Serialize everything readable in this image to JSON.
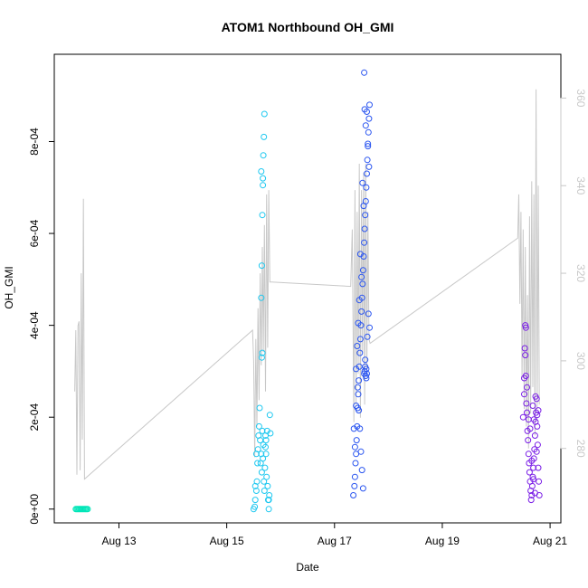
{
  "chart_data": {
    "type": "scatter",
    "title": "ATOM1 Northbound OH_GMI",
    "xlabel": "Date",
    "ylabel": "OH_GMI",
    "y2label": "",
    "x_ticks": [
      "Aug 13",
      "Aug 15",
      "Aug 17",
      "Aug 19",
      "Aug 21"
    ],
    "x_tick_days": [
      13,
      15,
      17,
      19,
      21
    ],
    "xlim_days": [
      11.8,
      21.2
    ],
    "y_ticks": [
      "0e+00",
      "2e-04",
      "4e-04",
      "6e-04",
      "8e-04"
    ],
    "y_tick_values": [
      0,
      0.0002,
      0.0004,
      0.0006,
      0.0008
    ],
    "ylim": [
      -3e-05,
      0.00099
    ],
    "y2_ticks": [
      "280",
      "300",
      "320",
      "340",
      "360"
    ],
    "y2_tick_values": [
      280,
      300,
      320,
      340,
      360
    ],
    "y2lim": [
      263,
      370
    ],
    "colors": {
      "line": "#c8c8c8",
      "frame": "#000000",
      "right_axis": "#c8c8c8"
    },
    "series": [
      {
        "color": "#00e6b8",
        "points_day_value": [
          [
            12.2,
            0.0
          ],
          [
            12.22,
            0.0
          ],
          [
            12.24,
            0.0
          ],
          [
            12.26,
            0.0
          ],
          [
            12.28,
            0.0
          ],
          [
            12.3,
            0.0
          ],
          [
            12.32,
            0.0
          ],
          [
            12.34,
            0.0
          ],
          [
            12.36,
            0.0
          ],
          [
            12.38,
            0.0
          ],
          [
            12.4,
            0.0
          ],
          [
            12.42,
            0.0
          ]
        ]
      },
      {
        "color": "#1ec8f0",
        "points_day_value": [
          [
            15.5,
            0.0
          ],
          [
            15.52,
            5e-06
          ],
          [
            15.53,
            2e-05
          ],
          [
            15.55,
            4e-05
          ],
          [
            15.56,
            6e-05
          ],
          [
            15.57,
            0.0001
          ],
          [
            15.58,
            0.00013
          ],
          [
            15.59,
            0.00016
          ],
          [
            15.6,
            0.00018
          ],
          [
            15.61,
            0.00022
          ],
          [
            15.62,
            0.00015
          ],
          [
            15.63,
            0.0001
          ],
          [
            15.64,
            0.00012
          ],
          [
            15.65,
            8e-05
          ],
          [
            15.66,
            0.00017
          ],
          [
            15.67,
            0.00011
          ],
          [
            15.68,
            0.00014
          ],
          [
            15.69,
            6e-05
          ],
          [
            15.7,
            4e-05
          ],
          [
            15.71,
            9e-05
          ],
          [
            15.72,
            0.00016
          ],
          [
            15.73,
            0.00012
          ],
          [
            15.74,
            7e-05
          ],
          [
            15.75,
            0.00017
          ],
          [
            15.76,
            5e-05
          ],
          [
            15.77,
            2e-05
          ],
          [
            15.78,
            0.0
          ],
          [
            15.79,
            3e-05
          ],
          [
            15.8,
            0.000205
          ],
          [
            15.81,
            0.000165
          ],
          [
            15.64,
            0.00046
          ],
          [
            15.65,
            0.00053
          ],
          [
            15.66,
            0.00064
          ],
          [
            15.67,
            0.00072
          ],
          [
            15.68,
            0.00077
          ],
          [
            15.69,
            0.00081
          ],
          [
            15.7,
            0.00086
          ],
          [
            15.65,
            0.00033
          ],
          [
            15.66,
            0.00034
          ],
          [
            15.64,
            0.000735
          ],
          [
            15.67,
            0.000705
          ],
          [
            15.72,
            0.000135
          ],
          [
            15.73,
            0.00015
          ],
          [
            15.78,
            2e-05
          ],
          [
            15.53,
            5e-05
          ],
          [
            15.55,
            0.00012
          ]
        ]
      },
      {
        "color": "#2a55f0",
        "points_day_value": [
          [
            17.35,
            3e-05
          ],
          [
            17.37,
            5e-05
          ],
          [
            17.38,
            7e-05
          ],
          [
            17.39,
            0.0001
          ],
          [
            17.4,
            0.00012
          ],
          [
            17.41,
            0.00015
          ],
          [
            17.42,
            0.00018
          ],
          [
            17.43,
            0.00022
          ],
          [
            17.44,
            0.00025
          ],
          [
            17.45,
            0.00028
          ],
          [
            17.46,
            0.00031
          ],
          [
            17.47,
            0.00034
          ],
          [
            17.48,
            0.00037
          ],
          [
            17.49,
            0.0004
          ],
          [
            17.5,
            0.00043
          ],
          [
            17.51,
            0.00046
          ],
          [
            17.52,
            0.00049
          ],
          [
            17.53,
            0.00052
          ],
          [
            17.54,
            0.00055
          ],
          [
            17.55,
            0.00058
          ],
          [
            17.56,
            0.00061
          ],
          [
            17.57,
            0.00064
          ],
          [
            17.58,
            0.00067
          ],
          [
            17.59,
            0.0007
          ],
          [
            17.6,
            0.00073
          ],
          [
            17.61,
            0.00076
          ],
          [
            17.62,
            0.00079
          ],
          [
            17.63,
            0.00082
          ],
          [
            17.64,
            0.00085
          ],
          [
            17.65,
            0.00088
          ],
          [
            17.55,
            0.00095
          ],
          [
            17.56,
            0.00087
          ],
          [
            17.58,
            0.000835
          ],
          [
            17.6,
            0.000865
          ],
          [
            17.62,
            0.000795
          ],
          [
            17.64,
            0.000745
          ],
          [
            17.52,
            0.00071
          ],
          [
            17.54,
            0.00066
          ],
          [
            17.48,
            0.000555
          ],
          [
            17.5,
            0.000505
          ],
          [
            17.46,
            0.000455
          ],
          [
            17.44,
            0.000405
          ],
          [
            17.42,
            0.000355
          ],
          [
            17.4,
            0.000305
          ],
          [
            17.43,
            0.000265
          ],
          [
            17.45,
            0.000215
          ],
          [
            17.47,
            0.000175
          ],
          [
            17.49,
            0.000125
          ],
          [
            17.51,
            8.5e-05
          ],
          [
            17.53,
            4.5e-05
          ],
          [
            17.55,
            0.000295
          ],
          [
            17.57,
            0.000325
          ],
          [
            17.59,
            0.000285
          ],
          [
            17.61,
            0.000375
          ],
          [
            17.63,
            0.000425
          ],
          [
            17.65,
            0.000395
          ],
          [
            17.36,
            0.000175
          ],
          [
            17.38,
            0.000135
          ],
          [
            17.4,
            0.000225
          ],
          [
            17.56,
            0.0003
          ],
          [
            17.57,
            0.00031
          ],
          [
            17.58,
            0.00029
          ],
          [
            17.59,
            0.000305
          ],
          [
            17.6,
            0.000295
          ]
        ]
      },
      {
        "color": "#7a1ee6",
        "points_day_value": [
          [
            20.5,
            0.0002
          ],
          [
            20.52,
            0.00025
          ],
          [
            20.53,
            0.00035
          ],
          [
            20.54,
            0.0004
          ],
          [
            20.55,
            0.00029
          ],
          [
            20.56,
            0.00023
          ],
          [
            20.57,
            0.00021
          ],
          [
            20.58,
            0.00017
          ],
          [
            20.59,
            0.00015
          ],
          [
            20.6,
            0.00012
          ],
          [
            20.61,
            0.0001
          ],
          [
            20.62,
            8e-05
          ],
          [
            20.63,
            6e-05
          ],
          [
            20.64,
            4e-05
          ],
          [
            20.65,
            2e-05
          ],
          [
            20.66,
            3e-05
          ],
          [
            20.67,
            5e-05
          ],
          [
            20.68,
            7e-05
          ],
          [
            20.69,
            9e-05
          ],
          [
            20.7,
            0.00011
          ],
          [
            20.71,
            0.00013
          ],
          [
            20.72,
            0.00016
          ],
          [
            20.73,
            0.00019
          ],
          [
            20.74,
            0.00021
          ],
          [
            20.75,
            0.00024
          ],
          [
            20.76,
            0.00018
          ],
          [
            20.77,
            0.00014
          ],
          [
            20.78,
            9e-05
          ],
          [
            20.79,
            6e-05
          ],
          [
            20.8,
            3e-05
          ],
          [
            20.52,
            0.000285
          ],
          [
            20.54,
            0.000335
          ],
          [
            20.55,
            0.000395
          ],
          [
            20.57,
            0.000265
          ],
          [
            20.6,
            0.000195
          ],
          [
            20.63,
            0.000175
          ],
          [
            20.66,
            0.000105
          ],
          [
            20.69,
            6.5e-05
          ],
          [
            20.72,
            3.5e-05
          ],
          [
            20.75,
            0.000125
          ],
          [
            20.78,
            0.000215
          ],
          [
            20.7,
            0.000195
          ],
          [
            20.68,
            0.000225
          ],
          [
            20.73,
            0.000245
          ],
          [
            20.76,
            0.000205
          ]
        ]
      }
    ],
    "line_series": {
      "name": "",
      "axis": "right",
      "points_day_value": [
        [
          12.18,
          293
        ],
        [
          12.2,
          307
        ],
        [
          12.22,
          274
        ],
        [
          12.24,
          308
        ],
        [
          12.26,
          309
        ],
        [
          12.28,
          275
        ],
        [
          12.3,
          320
        ],
        [
          12.32,
          282
        ],
        [
          12.34,
          337
        ],
        [
          12.36,
          273
        ],
        [
          15.48,
          307
        ],
        [
          15.5,
          300
        ],
        [
          15.52,
          278
        ],
        [
          15.54,
          305
        ],
        [
          15.56,
          285
        ],
        [
          15.58,
          312
        ],
        [
          15.6,
          291
        ],
        [
          15.62,
          320
        ],
        [
          15.64,
          299
        ],
        [
          15.66,
          326
        ],
        [
          15.68,
          302
        ],
        [
          15.7,
          331
        ],
        [
          15.72,
          293
        ],
        [
          15.74,
          338
        ],
        [
          15.76,
          303
        ],
        [
          15.78,
          339
        ],
        [
          15.8,
          318
        ],
        [
          15.83,
          318
        ],
        [
          17.3,
          317
        ],
        [
          17.33,
          330
        ],
        [
          17.36,
          286
        ],
        [
          17.38,
          339
        ],
        [
          17.4,
          290
        ],
        [
          17.42,
          334
        ],
        [
          17.44,
          297
        ],
        [
          17.46,
          345
        ],
        [
          17.48,
          287
        ],
        [
          17.5,
          339
        ],
        [
          17.52,
          302
        ],
        [
          17.54,
          343
        ],
        [
          17.56,
          290
        ],
        [
          17.58,
          345
        ],
        [
          17.6,
          298
        ],
        [
          17.62,
          334
        ],
        [
          17.64,
          305
        ],
        [
          17.66,
          304
        ],
        [
          20.4,
          328
        ],
        [
          20.42,
          338
        ],
        [
          20.44,
          313
        ],
        [
          20.46,
          334
        ],
        [
          20.48,
          296
        ],
        [
          20.5,
          330
        ],
        [
          20.52,
          289
        ],
        [
          20.54,
          326
        ],
        [
          20.56,
          285
        ],
        [
          20.58,
          315
        ],
        [
          20.6,
          280
        ],
        [
          20.62,
          333
        ],
        [
          20.64,
          288
        ],
        [
          20.66,
          341
        ],
        [
          20.68,
          294
        ],
        [
          20.7,
          338
        ],
        [
          20.72,
          283
        ],
        [
          20.74,
          362
        ],
        [
          20.76,
          289
        ],
        [
          20.78,
          340
        ],
        [
          20.8,
          290
        ]
      ]
    }
  }
}
